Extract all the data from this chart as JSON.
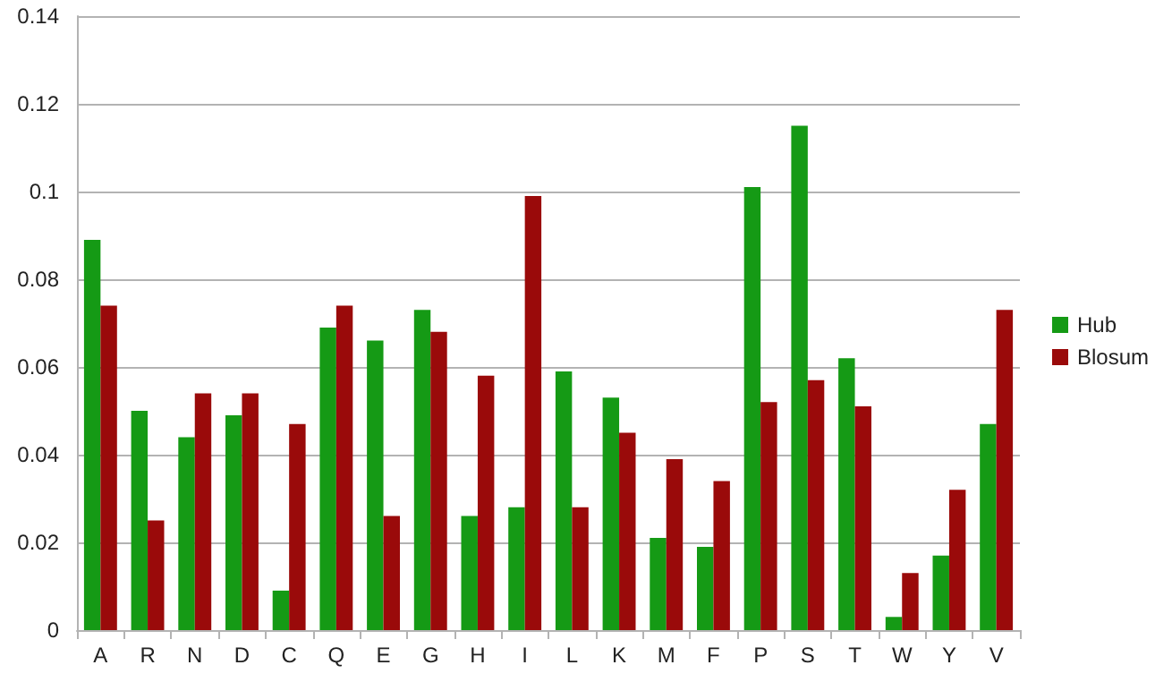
{
  "chart_data": {
    "type": "bar",
    "categories": [
      "A",
      "R",
      "N",
      "D",
      "C",
      "Q",
      "E",
      "G",
      "H",
      "I",
      "L",
      "K",
      "M",
      "F",
      "P",
      "S",
      "T",
      "W",
      "Y",
      "V"
    ],
    "series": [
      {
        "name": "Hub",
        "color": "#159a15",
        "values": [
          0.089,
          0.05,
          0.044,
          0.049,
          0.009,
          0.069,
          0.066,
          0.073,
          0.026,
          0.028,
          0.059,
          0.053,
          0.021,
          0.019,
          0.101,
          0.115,
          0.062,
          0.003,
          0.017,
          0.047
        ]
      },
      {
        "name": "Blosum",
        "color": "#9a0a0a",
        "values": [
          0.074,
          0.025,
          0.054,
          0.054,
          0.047,
          0.074,
          0.026,
          0.068,
          0.058,
          0.099,
          0.028,
          0.045,
          0.039,
          0.034,
          0.052,
          0.057,
          0.051,
          0.013,
          0.032,
          0.073
        ]
      }
    ],
    "ylim": [
      0,
      0.14
    ],
    "yticks": [
      0,
      0.02,
      0.04,
      0.06,
      0.08,
      0.1,
      0.12,
      0.14
    ],
    "grid": "y",
    "legend": "right"
  }
}
